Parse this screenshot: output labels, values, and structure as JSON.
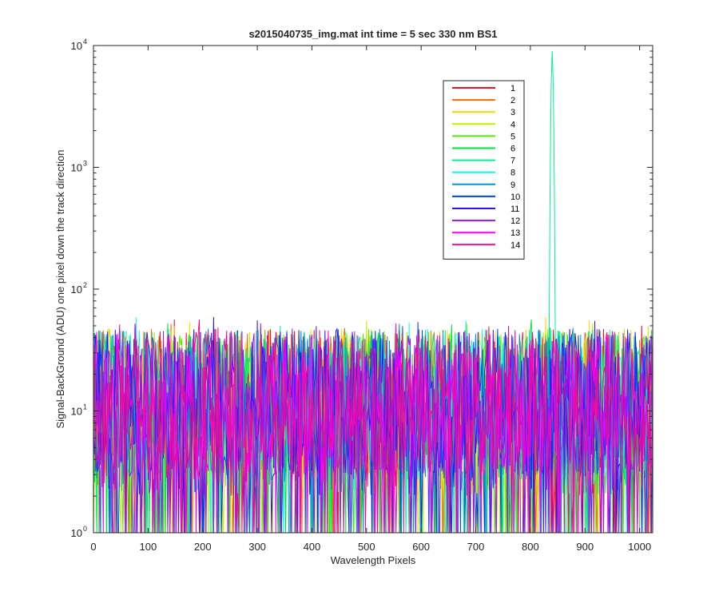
{
  "chart_data": {
    "type": "line",
    "title": "s2015040735_img.mat int time = 5 sec  330 nm BS1",
    "xlabel": "Wavelength Pixels",
    "ylabel": "Signal-BackGround (ADU) one pixel down the track direction",
    "xlim": [
      0,
      1024
    ],
    "ylim": [
      1,
      10000
    ],
    "yscale": "log",
    "grid": false,
    "legend_position": "upper-right (inside)",
    "x_ticks": [
      "0",
      "100",
      "200",
      "300",
      "400",
      "500",
      "600",
      "700",
      "800",
      "900",
      "1000"
    ],
    "y_ticks": [
      {
        "base": "10",
        "exp": "0"
      },
      {
        "base": "10",
        "exp": "1"
      },
      {
        "base": "10",
        "exp": "2"
      },
      {
        "base": "10",
        "exp": "3"
      },
      {
        "base": "10",
        "exp": "4"
      }
    ],
    "noise_floor_range": [
      1,
      60
    ],
    "peak": {
      "series": "7",
      "x": 840,
      "y": 9000
    },
    "series": [
      {
        "name": "1",
        "color": "#e8102c"
      },
      {
        "name": "2",
        "color": "#ff6a00"
      },
      {
        "name": "3",
        "color": "#ffd400"
      },
      {
        "name": "4",
        "color": "#c6ef00"
      },
      {
        "name": "5",
        "color": "#58e800"
      },
      {
        "name": "6",
        "color": "#00e23c"
      },
      {
        "name": "7",
        "color": "#00f090"
      },
      {
        "name": "8",
        "color": "#19f5e5"
      },
      {
        "name": "9",
        "color": "#0096d8"
      },
      {
        "name": "10",
        "color": "#0044f0"
      },
      {
        "name": "11",
        "color": "#2a16f5"
      },
      {
        "name": "12",
        "color": "#9615f0"
      },
      {
        "name": "13",
        "color": "#ff00ee"
      },
      {
        "name": "14",
        "color": "#e8108a"
      }
    ]
  }
}
